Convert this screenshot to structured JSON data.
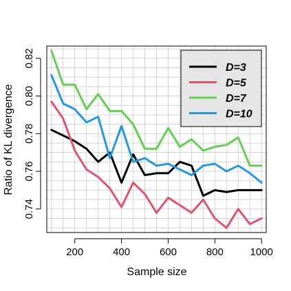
{
  "chart_data": {
    "type": "line",
    "xlabel": "Sample size",
    "ylabel": "Ratio of KL divergence",
    "xlim": [
      80,
      1020
    ],
    "ylim": [
      0.7275,
      0.8265
    ],
    "x_ticks": [
      200,
      400,
      600,
      800,
      1000
    ],
    "y_ticks": [
      0.74,
      0.76,
      0.78,
      0.8,
      0.82
    ],
    "x_tick_labels": [
      "200",
      "400",
      "600",
      "800",
      "1000"
    ],
    "y_tick_labels": [
      "0.74",
      "0.76",
      "0.78",
      "0.80",
      "0.82"
    ],
    "grid": true,
    "legend_position": "top-right",
    "x": [
      100,
      150,
      200,
      250,
      300,
      350,
      400,
      450,
      500,
      550,
      600,
      650,
      700,
      750,
      800,
      850,
      900,
      950,
      1000
    ],
    "series": [
      {
        "name": "D=3",
        "color": "#000000",
        "values": [
          0.782,
          0.779,
          0.776,
          0.772,
          0.765,
          0.77,
          0.754,
          0.769,
          0.758,
          0.759,
          0.759,
          0.765,
          0.763,
          0.747,
          0.75,
          0.749,
          0.75,
          0.75,
          0.75
        ]
      },
      {
        "name": "D=5",
        "color": "#DF536B",
        "values": [
          0.797,
          0.788,
          0.771,
          0.761,
          0.757,
          0.751,
          0.741,
          0.754,
          0.748,
          0.738,
          0.746,
          0.742,
          0.738,
          0.745,
          0.735,
          0.73,
          0.74,
          0.732,
          0.735
        ]
      },
      {
        "name": "D=7",
        "color": "#61D04F",
        "values": [
          0.824,
          0.806,
          0.806,
          0.793,
          0.801,
          0.792,
          0.792,
          0.785,
          0.772,
          0.772,
          0.783,
          0.773,
          0.777,
          0.771,
          0.773,
          0.774,
          0.778,
          0.763,
          0.763
        ]
      },
      {
        "name": "D=10",
        "color": "#2297E6",
        "values": [
          0.811,
          0.796,
          0.793,
          0.786,
          0.789,
          0.767,
          0.784,
          0.765,
          0.767,
          0.763,
          0.764,
          0.761,
          0.758,
          0.763,
          0.764,
          0.76,
          0.763,
          0.759,
          0.754
        ]
      }
    ]
  }
}
